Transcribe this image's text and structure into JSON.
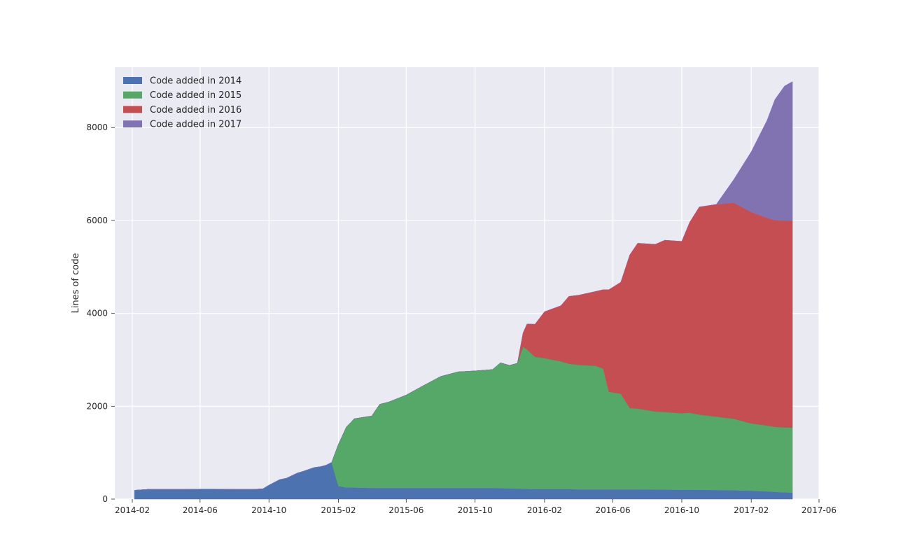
{
  "chart_data": {
    "type": "area",
    "stacked": true,
    "title": "",
    "xlabel": "",
    "ylabel": "Lines of code",
    "xlim": [
      "2014-01",
      "2017-06"
    ],
    "ylim": [
      0,
      9300
    ],
    "x_ticks": [
      "2014-02",
      "2014-06",
      "2014-10",
      "2015-02",
      "2015-06",
      "2015-10",
      "2016-02",
      "2016-06",
      "2016-10",
      "2017-02",
      "2017-06"
    ],
    "y_ticks": [
      0,
      2000,
      4000,
      6000,
      8000
    ],
    "grid": true,
    "legend_position": "top-left",
    "x": [
      "2014-02-05",
      "2014-03-01",
      "2014-04-01",
      "2014-05-01",
      "2014-06-01",
      "2014-07-01",
      "2014-08-01",
      "2014-09-01",
      "2014-09-20",
      "2014-10-01",
      "2014-10-20",
      "2014-11-01",
      "2014-11-20",
      "2014-12-01",
      "2014-12-20",
      "2015-01-01",
      "2015-01-10",
      "2015-01-20",
      "2015-02-01",
      "2015-02-15",
      "2015-03-01",
      "2015-04-01",
      "2015-04-15",
      "2015-05-01",
      "2015-06-01",
      "2015-07-01",
      "2015-08-01",
      "2015-09-01",
      "2015-10-01",
      "2015-11-01",
      "2015-11-15",
      "2015-12-01",
      "2015-12-15",
      "2015-12-25",
      "2016-01-01",
      "2016-01-15",
      "2016-02-01",
      "2016-03-01",
      "2016-03-15",
      "2016-04-01",
      "2016-05-01",
      "2016-05-15",
      "2016-05-25",
      "2016-06-15",
      "2016-07-01",
      "2016-07-15",
      "2016-08-15",
      "2016-09-01",
      "2016-10-01",
      "2016-10-15",
      "2016-11-01",
      "2016-12-01",
      "2017-01-01",
      "2017-02-01",
      "2017-03-01",
      "2017-03-15",
      "2017-04-01",
      "2017-04-15"
    ],
    "series": [
      {
        "name": "Code added in 2014",
        "color": "#4c72b0",
        "values": [
          190,
          210,
          210,
          210,
          215,
          215,
          210,
          210,
          220,
          300,
          420,
          450,
          560,
          600,
          680,
          700,
          730,
          790,
          280,
          250,
          250,
          240,
          240,
          240,
          240,
          240,
          240,
          240,
          240,
          240,
          235,
          230,
          225,
          220,
          220,
          215,
          215,
          215,
          215,
          210,
          210,
          210,
          210,
          210,
          210,
          210,
          205,
          205,
          200,
          200,
          200,
          195,
          190,
          180,
          165,
          155,
          145,
          140
        ]
      },
      {
        "name": "Code added in 2015",
        "color": "#55a868",
        "values": [
          0,
          0,
          0,
          0,
          0,
          0,
          0,
          0,
          0,
          0,
          0,
          0,
          0,
          0,
          0,
          0,
          0,
          0,
          900,
          1300,
          1480,
          1550,
          1800,
          1850,
          2000,
          2200,
          2400,
          2500,
          2520,
          2550,
          2700,
          2650,
          2700,
          3060,
          3000,
          2850,
          2820,
          2750,
          2700,
          2680,
          2660,
          2600,
          2100,
          2060,
          1750,
          1740,
          1680,
          1670,
          1650,
          1660,
          1620,
          1580,
          1540,
          1450,
          1420,
          1400,
          1400,
          1400
        ]
      },
      {
        "name": "Code added in 2016",
        "color": "#c44e52",
        "values": [
          0,
          0,
          0,
          0,
          0,
          0,
          0,
          0,
          0,
          0,
          0,
          0,
          0,
          0,
          0,
          0,
          0,
          0,
          0,
          0,
          0,
          0,
          0,
          0,
          0,
          0,
          0,
          0,
          0,
          0,
          0,
          0,
          0,
          300,
          550,
          700,
          1000,
          1200,
          1450,
          1500,
          1600,
          1700,
          2200,
          2400,
          3300,
          3560,
          3600,
          3700,
          3700,
          4100,
          4470,
          4570,
          4650,
          4550,
          4470,
          4450,
          4450,
          4450
        ]
      },
      {
        "name": "Code added in 2017",
        "color": "#8172b2",
        "values": [
          0,
          0,
          0,
          0,
          0,
          0,
          0,
          0,
          0,
          0,
          0,
          0,
          0,
          0,
          0,
          0,
          0,
          0,
          0,
          0,
          0,
          0,
          0,
          0,
          0,
          0,
          0,
          0,
          0,
          0,
          0,
          0,
          0,
          0,
          0,
          0,
          0,
          0,
          0,
          0,
          0,
          0,
          0,
          0,
          0,
          0,
          0,
          0,
          0,
          0,
          0,
          0,
          500,
          1300,
          2100,
          2600,
          2900,
          3000
        ]
      }
    ]
  }
}
